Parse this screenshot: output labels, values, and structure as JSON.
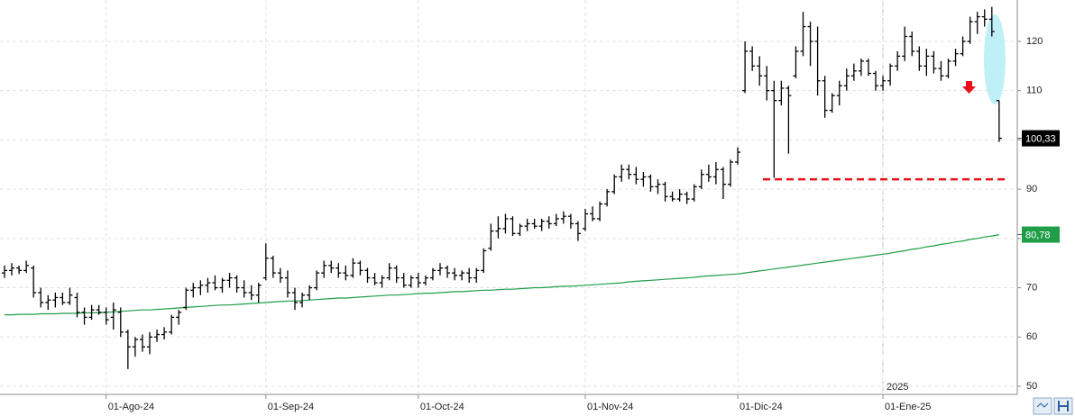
{
  "chart_data": {
    "type": "ohlc",
    "color": "#000000",
    "grid": true,
    "ylim": [
      48.35,
      128.4
    ],
    "yticks": [
      50,
      60,
      70,
      80,
      90,
      100,
      110,
      120
    ],
    "year_label": "2025",
    "categories": [
      null,
      null,
      null,
      null,
      null,
      null,
      null,
      null,
      null,
      null,
      null,
      null,
      null,
      null,
      "01-Ago-24",
      null,
      null,
      null,
      null,
      null,
      null,
      null,
      null,
      null,
      null,
      null,
      null,
      null,
      null,
      null,
      null,
      null,
      null,
      null,
      null,
      null,
      "01-Sep-24",
      null,
      null,
      null,
      null,
      null,
      null,
      null,
      null,
      null,
      null,
      null,
      null,
      null,
      null,
      null,
      null,
      null,
      null,
      null,
      null,
      "01-Oct-24",
      null,
      null,
      null,
      null,
      null,
      null,
      null,
      null,
      null,
      null,
      null,
      null,
      null,
      null,
      null,
      null,
      null,
      null,
      null,
      null,
      null,
      null,
      "01-Nov-24",
      null,
      null,
      null,
      null,
      null,
      null,
      null,
      null,
      null,
      null,
      null,
      null,
      null,
      null,
      null,
      null,
      null,
      null,
      null,
      null,
      "01-Dic-24",
      null,
      null,
      null,
      null,
      null,
      null,
      null,
      null,
      null,
      null,
      null,
      null,
      null,
      null,
      null,
      null,
      null,
      null,
      null,
      "01-Ene-25",
      null,
      null,
      null,
      null,
      null,
      null,
      null,
      null,
      null,
      null,
      null,
      null,
      null,
      null,
      null,
      null
    ],
    "ohlc": [
      [
        73,
        74.5,
        72,
        73.5
      ],
      [
        73.5,
        75,
        72.5,
        74
      ],
      [
        74,
        74.5,
        72.8,
        73.5
      ],
      [
        73.5,
        75.5,
        73,
        74.5
      ],
      [
        74,
        74.5,
        68,
        69
      ],
      [
        69,
        70,
        66,
        67
      ],
      [
        67,
        68.5,
        65.5,
        67.5
      ],
      [
        67.5,
        69,
        66,
        68
      ],
      [
        68,
        69,
        66.5,
        67
      ],
      [
        67,
        70,
        66.5,
        68.5
      ],
      [
        68,
        69,
        64,
        65
      ],
      [
        65,
        66,
        62.5,
        64
      ],
      [
        64,
        66.5,
        63.5,
        65.5
      ],
      [
        65.5,
        66.5,
        64.5,
        65
      ],
      [
        65,
        66,
        62.5,
        63.5
      ],
      [
        64,
        67,
        61.5,
        65.5
      ],
      [
        65,
        66,
        60,
        61
      ],
      [
        61,
        61.5,
        53.5,
        58
      ],
      [
        58,
        60,
        56,
        59.5
      ],
      [
        59.5,
        60.5,
        57,
        58
      ],
      [
        58,
        61,
        56.5,
        60
      ],
      [
        60,
        61.5,
        59,
        60.5
      ],
      [
        60.5,
        62,
        59.5,
        61
      ],
      [
        61,
        64.5,
        60.5,
        64
      ],
      [
        64,
        65.5,
        62.5,
        65
      ],
      [
        66,
        70,
        65.5,
        69.5
      ],
      [
        69.5,
        71,
        68,
        70
      ],
      [
        70,
        71.5,
        68.5,
        70.5
      ],
      [
        70.5,
        72,
        69,
        71
      ],
      [
        71,
        72.5,
        69.5,
        70
      ],
      [
        70,
        72,
        69,
        71.5
      ],
      [
        71.5,
        73,
        70,
        72
      ],
      [
        72,
        72.5,
        69,
        70
      ],
      [
        70,
        71.5,
        68,
        69
      ],
      [
        69,
        70.5,
        67.5,
        68.5
      ],
      [
        68.5,
        71,
        67,
        70.5
      ],
      [
        72,
        79,
        71.5,
        76
      ],
      [
        76,
        76.5,
        72,
        73
      ],
      [
        73,
        74,
        71,
        72
      ],
      [
        72,
        73.5,
        68,
        69
      ],
      [
        69,
        70,
        65.5,
        67
      ],
      [
        67,
        69,
        66,
        68.5
      ],
      [
        68.5,
        70.5,
        67.5,
        70
      ],
      [
        70,
        73.5,
        69.5,
        73
      ],
      [
        73,
        75.5,
        72,
        74.5
      ],
      [
        74.5,
        75.5,
        73,
        74
      ],
      [
        74,
        75,
        72,
        73
      ],
      [
        73,
        74.5,
        71.5,
        72.5
      ],
      [
        72.5,
        76,
        72,
        75
      ],
      [
        75,
        75.5,
        72.5,
        73.5
      ],
      [
        73.5,
        74,
        71,
        72
      ],
      [
        72,
        73,
        70.5,
        71
      ],
      [
        71,
        72.5,
        70,
        72
      ],
      [
        72,
        75,
        71.5,
        74
      ],
      [
        74,
        74.5,
        71,
        72
      ],
      [
        72,
        73,
        70,
        70.5
      ],
      [
        70.5,
        72.5,
        70,
        72
      ],
      [
        72,
        73,
        70,
        71
      ],
      [
        71,
        72.5,
        70.5,
        72
      ],
      [
        72,
        74,
        71.5,
        73.5
      ],
      [
        73.5,
        75,
        72.5,
        74
      ],
      [
        74,
        74.5,
        72,
        73
      ],
      [
        73,
        74,
        71.5,
        72.5
      ],
      [
        72.5,
        73.5,
        71.5,
        73
      ],
      [
        73,
        74,
        71,
        72
      ],
      [
        72,
        74,
        71,
        73.5
      ],
      [
        73.5,
        78,
        73,
        77.5
      ],
      [
        78,
        83,
        77.5,
        81.5
      ],
      [
        81.5,
        84.5,
        80,
        82
      ],
      [
        82,
        85,
        81,
        84
      ],
      [
        84,
        84.5,
        80.5,
        81
      ],
      [
        81,
        83,
        80.5,
        82.5
      ],
      [
        82.5,
        84,
        81.5,
        83
      ],
      [
        83,
        84,
        82,
        82.5
      ],
      [
        82.5,
        84,
        81.5,
        83.5
      ],
      [
        83.5,
        84.5,
        82,
        83
      ],
      [
        83,
        85,
        82.5,
        84
      ],
      [
        84,
        85.5,
        83,
        84.5
      ],
      [
        84.5,
        85,
        82,
        83
      ],
      [
        83,
        83.5,
        79.5,
        81
      ],
      [
        82,
        86,
        81.5,
        85
      ],
      [
        85,
        86.5,
        83.5,
        84
      ],
      [
        84,
        87.5,
        83.5,
        87
      ],
      [
        87,
        90,
        86.5,
        89.5
      ],
      [
        89.5,
        93,
        89,
        92.5
      ],
      [
        92.5,
        95,
        91.5,
        94
      ],
      [
        94,
        95,
        92,
        93
      ],
      [
        93,
        94.5,
        91,
        92
      ],
      [
        92,
        93.5,
        90.5,
        92.5
      ],
      [
        92.5,
        93,
        89.5,
        90.5
      ],
      [
        90.5,
        92,
        89,
        91
      ],
      [
        91,
        91.5,
        87.5,
        88.5
      ],
      [
        88.5,
        89.5,
        87.5,
        88
      ],
      [
        88,
        90,
        87.5,
        89
      ],
      [
        89,
        89.5,
        87,
        88
      ],
      [
        88,
        91,
        87.5,
        90.5
      ],
      [
        90.5,
        94,
        90,
        93
      ],
      [
        93,
        95,
        91.5,
        92.5
      ],
      [
        92.5,
        95.5,
        91,
        94
      ],
      [
        94,
        94.5,
        88,
        91
      ],
      [
        91,
        96,
        90.5,
        95.5
      ],
      [
        95.5,
        98.5,
        95,
        97.5
      ],
      [
        110,
        120,
        109.5,
        118
      ],
      [
        118,
        119,
        114,
        115
      ],
      [
        115,
        117,
        111,
        113
      ],
      [
        113,
        115,
        108,
        110
      ],
      [
        110,
        112,
        92.3,
        108
      ],
      [
        108,
        112,
        107,
        110.5
      ],
      [
        110.5,
        111,
        97.2,
        109
      ],
      [
        113,
        119,
        112.5,
        118
      ],
      [
        118,
        126,
        117,
        123
      ],
      [
        123,
        124,
        115,
        120
      ],
      [
        120,
        123,
        109,
        112
      ],
      [
        112,
        113,
        104.5,
        106
      ],
      [
        106,
        109.5,
        105.5,
        109
      ],
      [
        109,
        112,
        107,
        111
      ],
      [
        111,
        114.5,
        110,
        113
      ],
      [
        113,
        115.5,
        112,
        114
      ],
      [
        114,
        116.5,
        113,
        116
      ],
      [
        116,
        116.5,
        113,
        113.5
      ],
      [
        113.5,
        114,
        110,
        111
      ],
      [
        111,
        113,
        110,
        112
      ],
      [
        112,
        115.5,
        111,
        115
      ],
      [
        115,
        118,
        114,
        117
      ],
      [
        117,
        123,
        116,
        121
      ],
      [
        121,
        122,
        117,
        118
      ],
      [
        118,
        119,
        114,
        115
      ],
      [
        115,
        118.5,
        113,
        117
      ],
      [
        117,
        118,
        113.5,
        114.5
      ],
      [
        114.5,
        116,
        112,
        113
      ],
      [
        113,
        116.5,
        112.5,
        116
      ],
      [
        116,
        118.5,
        115,
        117.5
      ],
      [
        117.5,
        121,
        117,
        120
      ],
      [
        120,
        125,
        119.5,
        124
      ],
      [
        124,
        126,
        121.5,
        125
      ],
      [
        125,
        126.5,
        123,
        124.5
      ],
      [
        124.5,
        127,
        121,
        122
      ],
      [
        108,
        108,
        99.6,
        100.33
      ]
    ],
    "last_price": {
      "value": 100.33,
      "label": "100,33"
    },
    "moving_average": {
      "color": "#1f9e48",
      "values": [
        64.5,
        64.5,
        64.6,
        64.6,
        64.6,
        64.7,
        64.7,
        64.7,
        64.8,
        64.8,
        64.8,
        64.9,
        64.9,
        64.9,
        65.0,
        65.1,
        65.2,
        65.3,
        65.4,
        65.5,
        65.5,
        65.6,
        65.7,
        65.8,
        65.9,
        66.0,
        66.1,
        66.2,
        66.3,
        66.4,
        66.5,
        66.5,
        66.6,
        66.7,
        66.8,
        66.9,
        67.0,
        67.1,
        67.2,
        67.3,
        67.3,
        67.4,
        67.5,
        67.6,
        67.7,
        67.8,
        67.9,
        67.9,
        68.0,
        68.1,
        68.2,
        68.3,
        68.4,
        68.5,
        68.5,
        68.6,
        68.7,
        68.8,
        68.9,
        68.9,
        69.0,
        69.1,
        69.2,
        69.2,
        69.3,
        69.4,
        69.5,
        69.5,
        69.6,
        69.7,
        69.7,
        69.8,
        69.9,
        70.0,
        70.0,
        70.1,
        70.2,
        70.3,
        70.3,
        70.4,
        70.5,
        70.6,
        70.7,
        70.8,
        70.9,
        71.0,
        71.2,
        71.3,
        71.4,
        71.5,
        71.6,
        71.7,
        71.8,
        71.9,
        72.0,
        72.1,
        72.3,
        72.4,
        72.5,
        72.6,
        72.7,
        72.8,
        73.0,
        73.2,
        73.4,
        73.6,
        73.8,
        74.0,
        74.2,
        74.4,
        74.6,
        74.8,
        75.0,
        75.2,
        75.4,
        75.6,
        75.8,
        76.0,
        76.2,
        76.4,
        76.6,
        76.8,
        77.0,
        77.3,
        77.5,
        77.8,
        78.0,
        78.3,
        78.5,
        78.8,
        79.0,
        79.3,
        79.5,
        79.8,
        80.0,
        80.3,
        80.5,
        80.78
      ],
      "last": {
        "value": 80.78,
        "label": "80,78"
      }
    },
    "hline": {
      "value": 92,
      "color": "#e8101a"
    }
  }
}
